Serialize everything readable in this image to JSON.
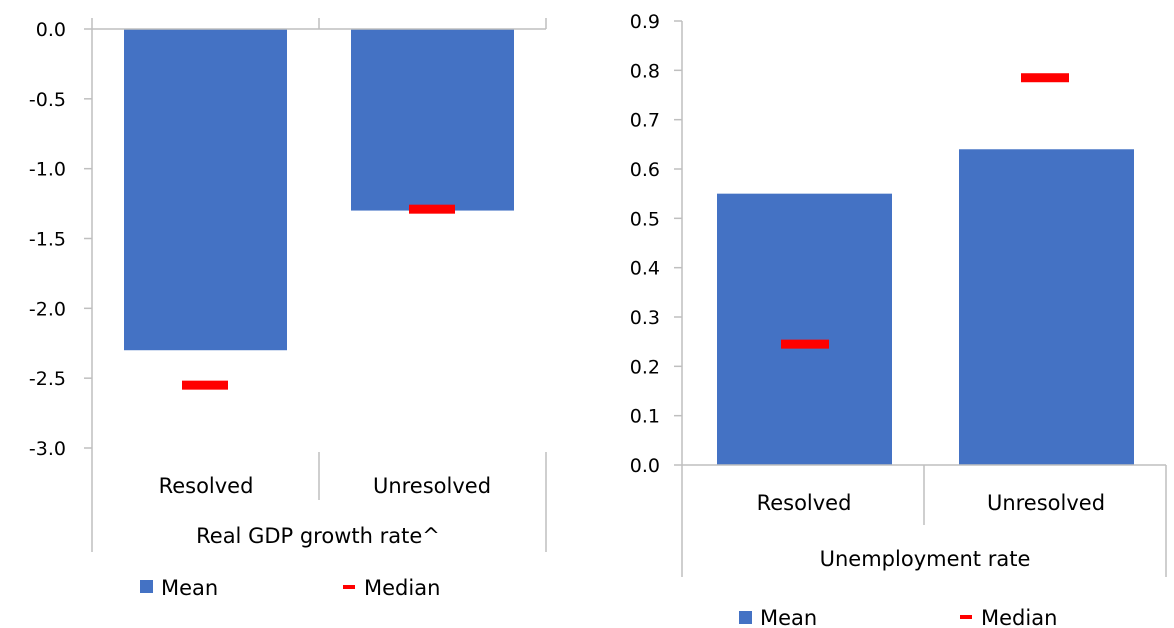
{
  "colors": {
    "mean": "#4472C4",
    "median": "#FF0000",
    "axis": "#BFBFBF"
  },
  "chart_data": [
    {
      "type": "bar",
      "categories": [
        "Resolved",
        "Unresolved"
      ],
      "series": [
        {
          "name": "Mean",
          "values": [
            -2.3,
            -1.3
          ]
        },
        {
          "name": "Median",
          "values": [
            -2.55,
            -1.29
          ]
        }
      ],
      "xlabel": "Real GDP growth rate^",
      "ylim": [
        -3.0,
        0.0
      ],
      "yticks": [
        "0.0",
        "-0.5",
        "-1.0",
        "-1.5",
        "-2.0",
        "-2.5",
        "-3.0"
      ],
      "grid": false,
      "legend": [
        "Mean",
        "Median"
      ],
      "legend_position": "bottom"
    },
    {
      "type": "bar",
      "categories": [
        "Resolved",
        "Unresolved"
      ],
      "series": [
        {
          "name": "Mean",
          "values": [
            0.55,
            0.64
          ]
        },
        {
          "name": "Median",
          "values": [
            0.245,
            0.785
          ]
        }
      ],
      "xlabel": "Unemployment rate",
      "ylim": [
        0.0,
        0.9
      ],
      "yticks": [
        "0.9",
        "0.8",
        "0.7",
        "0.6",
        "0.5",
        "0.4",
        "0.3",
        "0.2",
        "0.1",
        "0.0"
      ],
      "grid": false,
      "legend": [
        "Mean",
        "Median"
      ],
      "legend_position": "bottom"
    }
  ]
}
